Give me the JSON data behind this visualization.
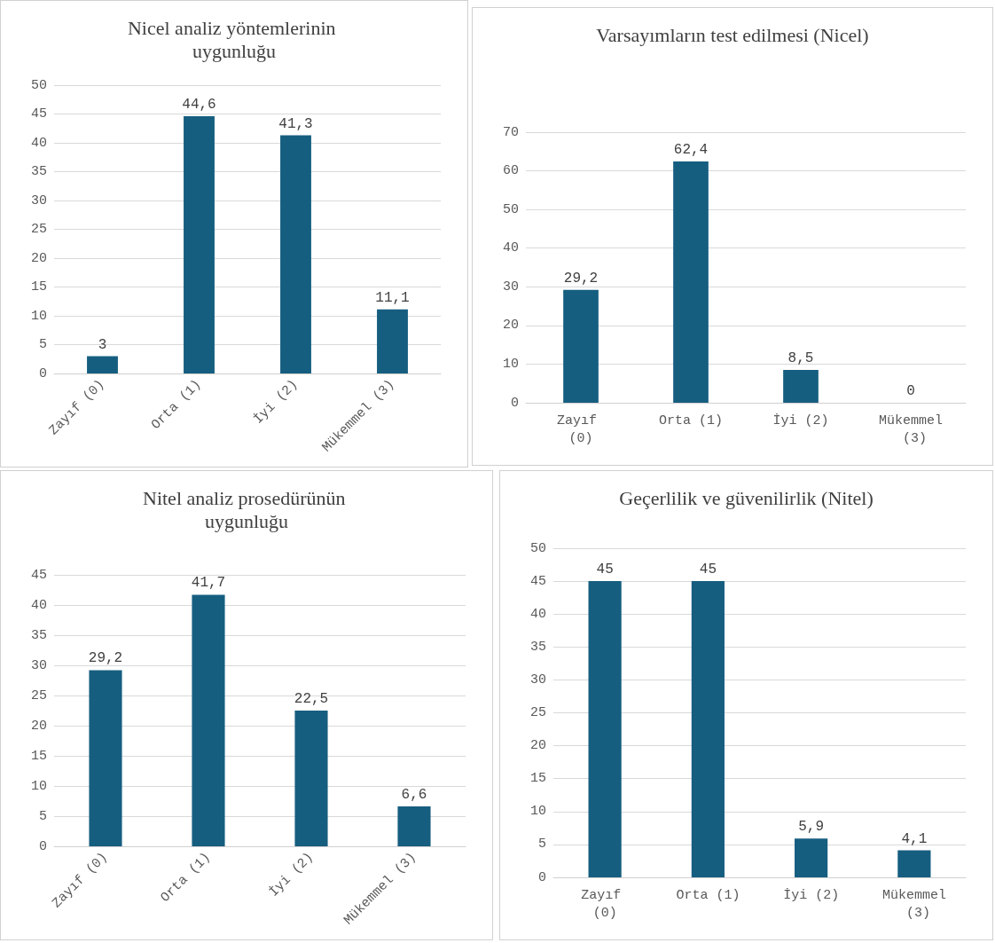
{
  "chart_data": [
    {
      "type": "bar",
      "title": "Nicel analiz yöntemlerinin uygunluğu",
      "categories": [
        "Zayıf (0)",
        "Orta (1)",
        "İyi (2)",
        "Mükemmel (3)"
      ],
      "values": [
        3,
        44.6,
        41.3,
        11.1
      ],
      "value_labels": [
        "3",
        "44,6",
        "41,3",
        "11,1"
      ],
      "color": "#165e80",
      "ylim": [
        0,
        50
      ],
      "yticks": [
        0,
        5,
        10,
        15,
        20,
        25,
        30,
        35,
        40,
        45,
        50
      ],
      "grid": "y"
    },
    {
      "type": "bar",
      "title": "Varsayımların test edilmesi (Nicel)",
      "categories": [
        "Zayıf (0)",
        "Orta (1)",
        "İyi (2)",
        "Mükemmel (3)"
      ],
      "values": [
        29.2,
        62.4,
        8.5,
        0
      ],
      "value_labels": [
        "29,2",
        "62,4",
        "8,5",
        "0"
      ],
      "color": "#165e80",
      "ylim": [
        0,
        70
      ],
      "yticks": [
        0,
        10,
        20,
        30,
        40,
        50,
        60,
        70
      ],
      "grid": "y"
    },
    {
      "type": "bar",
      "title": "Nitel analiz prosedürünün uygunluğu",
      "categories": [
        "Zayıf (0)",
        "Orta (1)",
        "İyi (2)",
        "Mükemmel (3)"
      ],
      "values": [
        29.2,
        41.7,
        22.5,
        6.6
      ],
      "value_labels": [
        "29,2",
        "41,7",
        "22,5",
        "6,6"
      ],
      "color": "#165e80",
      "ylim": [
        0,
        45
      ],
      "yticks": [
        0,
        5,
        10,
        15,
        20,
        25,
        30,
        35,
        40,
        45
      ],
      "grid": "y"
    },
    {
      "type": "bar",
      "title": "Geçerlilik ve güvenilirlik (Nitel)",
      "categories": [
        "Zayıf (0)",
        "Orta (1)",
        "İyi (2)",
        "Mükemmel (3)"
      ],
      "values": [
        45,
        45,
        5.9,
        4.1
      ],
      "value_labels": [
        "45",
        "45",
        "5,9",
        "4,1"
      ],
      "color": "#165e80",
      "ylim": [
        0,
        50
      ],
      "yticks": [
        0,
        5,
        10,
        15,
        20,
        25,
        30,
        35,
        40,
        45,
        50
      ],
      "grid": "y"
    }
  ]
}
